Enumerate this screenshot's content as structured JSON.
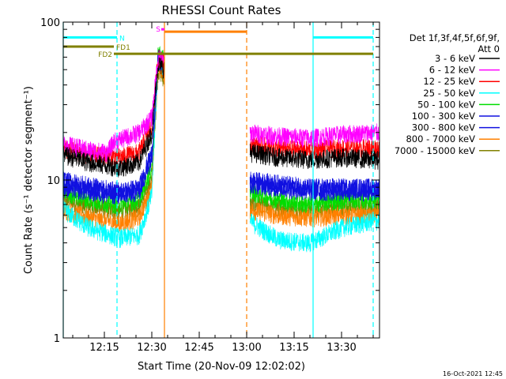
{
  "chart_data": {
    "type": "line",
    "title": "RHESSI Count Rates",
    "xlabel": "Start Time (20-Nov-09 12:02:02)",
    "ylabel": "Count Rate (s⁻¹ detector segment⁻¹)",
    "y_scale": "log",
    "ylim": [
      1,
      100
    ],
    "xlim": [
      "12:02",
      "13:42"
    ],
    "x_ticks": [
      "12:15",
      "12:30",
      "12:45",
      "13:00",
      "13:15",
      "13:30"
    ],
    "y_ticks": [
      "1",
      "10",
      "100"
    ],
    "grid": false,
    "legend_position": "top-right",
    "legend_header": [
      "Det 1f,3f,4f,5f,6f,9f,",
      "Att 0"
    ],
    "footer_date": "16-Oct-2021 12:45",
    "data_gap": [
      "12:34",
      "13:00"
    ],
    "series": [
      {
        "name": "3 - 6 keV",
        "color": "#000000",
        "x": [
          "12:02",
          "12:10",
          "12:20",
          "12:26",
          "12:30",
          "12:32",
          "13:01",
          "13:10",
          "13:20",
          "13:30",
          "13:40"
        ],
        "values": [
          14.5,
          13.0,
          12.0,
          13.0,
          20.0,
          55.0,
          15.0,
          14.0,
          13.5,
          14.0,
          13.5
        ]
      },
      {
        "name": "6 - 12 keV",
        "color": "#ff00ff",
        "x": [
          "12:02",
          "12:10",
          "12:16",
          "12:18",
          "12:26",
          "12:30",
          "12:32",
          "13:01",
          "13:10",
          "13:20",
          "13:30",
          "13:40"
        ],
        "values": [
          17.0,
          15.5,
          15.0,
          17.5,
          20.0,
          25.0,
          60.0,
          20.0,
          19.0,
          18.5,
          19.5,
          20.0
        ]
      },
      {
        "name": "12 - 25 keV",
        "color": "#ff0000",
        "x": [
          "12:02",
          "12:10",
          "12:20",
          "12:26",
          "12:30",
          "12:32",
          "13:01",
          "13:10",
          "13:20",
          "13:30",
          "13:40"
        ],
        "values": [
          16.0,
          14.5,
          14.0,
          15.0,
          22.0,
          60.0,
          17.0,
          16.0,
          15.5,
          16.0,
          16.0
        ]
      },
      {
        "name": "25 - 50 keV",
        "color": "#00ffff",
        "x": [
          "12:02",
          "12:10",
          "12:20",
          "12:26",
          "12:30",
          "12:32",
          "13:01",
          "13:10",
          "13:20",
          "13:30",
          "13:40"
        ],
        "values": [
          6.5,
          5.0,
          4.3,
          4.5,
          8.0,
          60.0,
          5.5,
          4.2,
          4.0,
          5.0,
          5.5
        ]
      },
      {
        "name": "50 - 100 keV",
        "color": "#00dd00",
        "x": [
          "12:02",
          "12:10",
          "12:20",
          "12:26",
          "12:30",
          "12:32",
          "13:01",
          "13:10",
          "13:20",
          "13:30",
          "13:40"
        ],
        "values": [
          8.5,
          7.5,
          7.0,
          7.5,
          12.0,
          65.0,
          8.5,
          7.5,
          7.0,
          7.5,
          7.5
        ]
      },
      {
        "name": "100 - 300 keV",
        "color": "#1010e0",
        "x": [
          "12:02",
          "12:10",
          "12:20",
          "12:26",
          "12:30",
          "12:32",
          "13:01",
          "13:10",
          "13:20",
          "13:30",
          "13:40"
        ],
        "values": [
          10.0,
          9.2,
          8.5,
          9.0,
          15.0,
          60.0,
          10.0,
          9.5,
          9.0,
          9.0,
          9.0
        ]
      },
      {
        "name": "300 - 800 keV",
        "color": "#1010e0",
        "x": [
          "12:02",
          "12:10",
          "12:20",
          "12:26",
          "12:30",
          "12:32",
          "13:01",
          "13:10",
          "13:20",
          "13:30",
          "13:40"
        ],
        "values": [
          9.0,
          8.5,
          8.0,
          8.5,
          14.0,
          58.0,
          9.5,
          9.0,
          8.5,
          8.5,
          8.5
        ]
      },
      {
        "name": "800 - 7000 keV",
        "color": "#ff8000",
        "x": [
          "12:02",
          "12:10",
          "12:20",
          "12:26",
          "12:30",
          "12:32",
          "13:01",
          "13:10",
          "13:20",
          "13:30",
          "13:40"
        ],
        "values": [
          6.5,
          5.8,
          5.3,
          5.8,
          9.0,
          55.0,
          6.5,
          6.0,
          5.8,
          6.0,
          6.0
        ]
      },
      {
        "name": "7000 - 15000 keV",
        "color": "#808000",
        "x": [
          "12:02",
          "12:10",
          "12:20",
          "12:26",
          "12:30",
          "12:32",
          "13:01",
          "13:10",
          "13:20",
          "13:30",
          "13:40"
        ],
        "values": [
          7.5,
          6.8,
          6.3,
          6.8,
          10.0,
          50.0,
          7.0,
          6.8,
          6.5,
          6.8,
          6.8
        ]
      }
    ],
    "flag_bars": [
      {
        "label": "N",
        "color": "#00ffff",
        "level": 80,
        "intervals": [
          [
            "12:02",
            "12:19"
          ],
          [
            "13:21",
            "13:40"
          ]
        ]
      },
      {
        "label": "FD1",
        "color": "#808000",
        "level": 70,
        "intervals": [
          [
            "12:02",
            "12:18"
          ]
        ]
      },
      {
        "label": "FD2",
        "color": "#808000",
        "level": 63,
        "intervals": [
          [
            "12:18",
            "13:40"
          ]
        ]
      },
      {
        "label": "S",
        "color": "#ff00ff",
        "level": 90,
        "intervals": [
          [
            "12:33",
            "12:34"
          ]
        ]
      },
      {
        "label": "",
        "color": "#ff8000",
        "level": 87,
        "intervals": [
          [
            "12:34",
            "13:00"
          ]
        ]
      }
    ],
    "vertical_lines": [
      {
        "t": "12:02",
        "color": "#00ffff",
        "style": "solid"
      },
      {
        "t": "12:19",
        "color": "#00ffff",
        "style": "dashed"
      },
      {
        "t": "12:34",
        "color": "#ff8000",
        "style": "solid"
      },
      {
        "t": "13:00",
        "color": "#ff8000",
        "style": "dashed"
      },
      {
        "t": "13:21",
        "color": "#00ffff",
        "style": "solid"
      },
      {
        "t": "13:40",
        "color": "#00ffff",
        "style": "dashed"
      }
    ]
  }
}
